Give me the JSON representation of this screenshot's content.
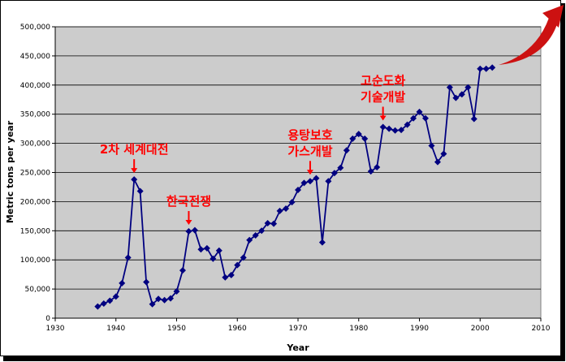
{
  "chart_data": {
    "type": "line",
    "xlabel": "Year",
    "ylabel": "Metric tons per year",
    "xlim": [
      1930,
      2010
    ],
    "ylim": [
      0,
      500000
    ],
    "xticks": [
      "1930",
      "1940",
      "1950",
      "1960",
      "1970",
      "1980",
      "1990",
      "2000",
      "2010"
    ],
    "yticks": [
      "0",
      "50,000",
      "100,000",
      "150,000",
      "200,000",
      "250,000",
      "300,000",
      "350,000",
      "400,000",
      "450,000",
      "500,000"
    ],
    "grid": "horizontal",
    "colors": {
      "series": "#000080",
      "plot_bg": "#cccccc",
      "annotation": "#ff0000",
      "arrow_curve": "#cc1111"
    },
    "series": [
      {
        "points": [
          [
            1937,
            20000
          ],
          [
            1938,
            25000
          ],
          [
            1939,
            30000
          ],
          [
            1940,
            37000
          ],
          [
            1941,
            60000
          ],
          [
            1942,
            104000
          ],
          [
            1943,
            238000
          ],
          [
            1944,
            218000
          ],
          [
            1945,
            62000
          ],
          [
            1946,
            24000
          ],
          [
            1947,
            33000
          ],
          [
            1948,
            31000
          ],
          [
            1949,
            34000
          ],
          [
            1950,
            46000
          ],
          [
            1951,
            82000
          ],
          [
            1952,
            149000
          ],
          [
            1953,
            151000
          ],
          [
            1954,
            118000
          ],
          [
            1955,
            120000
          ],
          [
            1956,
            102000
          ],
          [
            1957,
            116000
          ],
          [
            1958,
            70000
          ],
          [
            1959,
            74000
          ],
          [
            1960,
            91000
          ],
          [
            1961,
            104000
          ],
          [
            1962,
            134000
          ],
          [
            1963,
            142000
          ],
          [
            1964,
            150000
          ],
          [
            1965,
            163000
          ],
          [
            1966,
            162000
          ],
          [
            1967,
            184000
          ],
          [
            1968,
            188000
          ],
          [
            1969,
            199000
          ],
          [
            1970,
            220000
          ],
          [
            1971,
            232000
          ],
          [
            1972,
            235000
          ],
          [
            1973,
            240000
          ],
          [
            1974,
            130000
          ],
          [
            1975,
            235000
          ],
          [
            1976,
            249000
          ],
          [
            1977,
            258000
          ],
          [
            1978,
            288000
          ],
          [
            1979,
            308000
          ],
          [
            1980,
            316000
          ],
          [
            1981,
            308000
          ],
          [
            1982,
            252000
          ],
          [
            1983,
            259000
          ],
          [
            1984,
            328000
          ],
          [
            1985,
            325000
          ],
          [
            1986,
            322000
          ],
          [
            1987,
            323000
          ],
          [
            1988,
            332000
          ],
          [
            1989,
            343000
          ],
          [
            1990,
            354000
          ],
          [
            1991,
            343000
          ],
          [
            1992,
            296000
          ],
          [
            1993,
            268000
          ],
          [
            1994,
            282000
          ],
          [
            1995,
            396000
          ],
          [
            1996,
            378000
          ],
          [
            1997,
            384000
          ],
          [
            1998,
            396000
          ],
          [
            1999,
            342000
          ],
          [
            2000,
            428000
          ],
          [
            2001,
            428000
          ],
          [
            2002,
            430000
          ]
        ]
      }
    ],
    "annotations": [
      {
        "id": "ww2",
        "lines": [
          "2차 세계대전"
        ],
        "x": 1943,
        "y": 238000
      },
      {
        "id": "korea",
        "lines": [
          "한국전쟁"
        ],
        "x": 1952,
        "y": 149000
      },
      {
        "id": "ann1973",
        "lines": [
          "용탕보호",
          "가스개발"
        ],
        "x": 1972,
        "y": 235000
      },
      {
        "id": "ann1984",
        "lines": [
          "고순도화",
          "기술개발"
        ],
        "x": 1984,
        "y": 328000
      }
    ]
  }
}
